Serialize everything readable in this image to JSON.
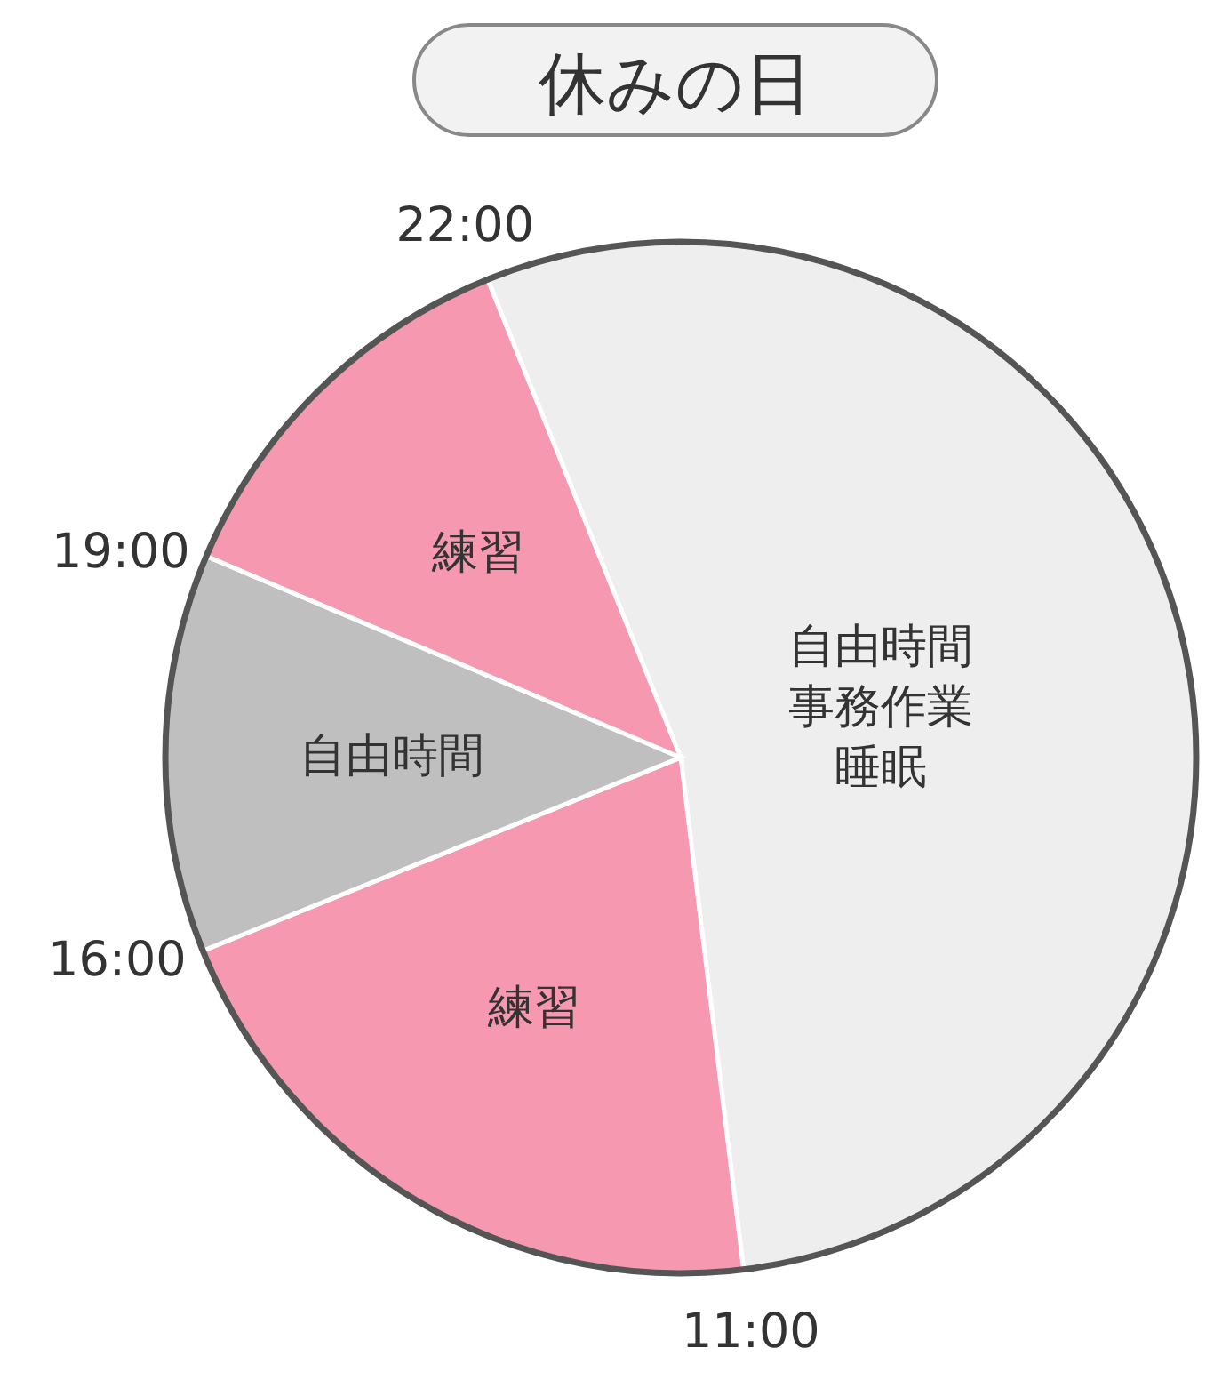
{
  "chart_data": {
    "type": "pie",
    "title": "休みの日",
    "categories": [
      "自由時間事務作業睡眠",
      "練習",
      "自由時間",
      "練習"
    ],
    "values": [
      54.17,
      20.83,
      12.5,
      12.5
    ],
    "colors": [
      "#efeeee",
      "#f598b0",
      "#bfbfc0",
      "#f598b0"
    ],
    "annotations": [
      "11:00",
      "16:00",
      "19:00",
      "22:00"
    ]
  }
}
